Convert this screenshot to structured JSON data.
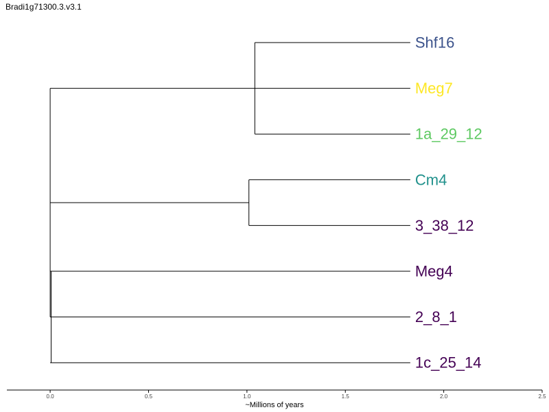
{
  "title": "Bradi1g71300.3.v3.1",
  "chart_data": {
    "type": "dendrogram",
    "xlabel": "~Millions of years",
    "xlim": [
      -0.22,
      2.5
    ],
    "xticks": [
      0.0,
      0.5,
      1.0,
      1.5,
      2.0,
      2.5
    ],
    "xtick_labels": [
      "0.0",
      "0.5",
      "1.0",
      "1.5",
      "2.0",
      "2.5"
    ],
    "tip_x": 1.83,
    "leaves": [
      {
        "name": "Shf16",
        "color": "#3b528b"
      },
      {
        "name": "Meg7",
        "color": "#fde725"
      },
      {
        "name": "1a_29_12",
        "color": "#5ec962"
      },
      {
        "name": "Cm4",
        "color": "#21918c"
      },
      {
        "name": "3_38_12",
        "color": "#440154"
      },
      {
        "name": "Meg4",
        "color": "#440154"
      },
      {
        "name": "2_8_1",
        "color": "#440154"
      },
      {
        "name": "1c_25_14",
        "color": "#440154"
      }
    ],
    "internal_nodes": [
      {
        "x": 1.04,
        "y_from": 0,
        "y_to": 2,
        "attach_y": 1
      },
      {
        "x": 1.01,
        "y_from": 3,
        "y_to": 4,
        "attach_y": 3.5
      },
      {
        "x": 0.005,
        "y_from": 5,
        "y_to": 7,
        "attach_y": 6
      },
      {
        "x": 0.0,
        "y_from": 1,
        "y_to": 6,
        "attach_y": 4
      }
    ],
    "branches": [
      {
        "x1": 1.04,
        "x2": 1.83,
        "y": 0
      },
      {
        "x1": 0.0,
        "x2": 1.83,
        "y": 1
      },
      {
        "x1": 1.04,
        "x2": 1.83,
        "y": 2
      },
      {
        "x1": 1.01,
        "x2": 1.83,
        "y": 3
      },
      {
        "x1": 1.01,
        "x2": 1.83,
        "y": 4
      },
      {
        "x1": 0.0,
        "x2": 1.01,
        "y": 3.5
      },
      {
        "x1": 0.0,
        "x2": 1.83,
        "y": 5
      },
      {
        "x1": 0.0,
        "x2": 1.83,
        "y": 6
      },
      {
        "x1": 0.0,
        "x2": 1.83,
        "y": 7
      }
    ]
  }
}
